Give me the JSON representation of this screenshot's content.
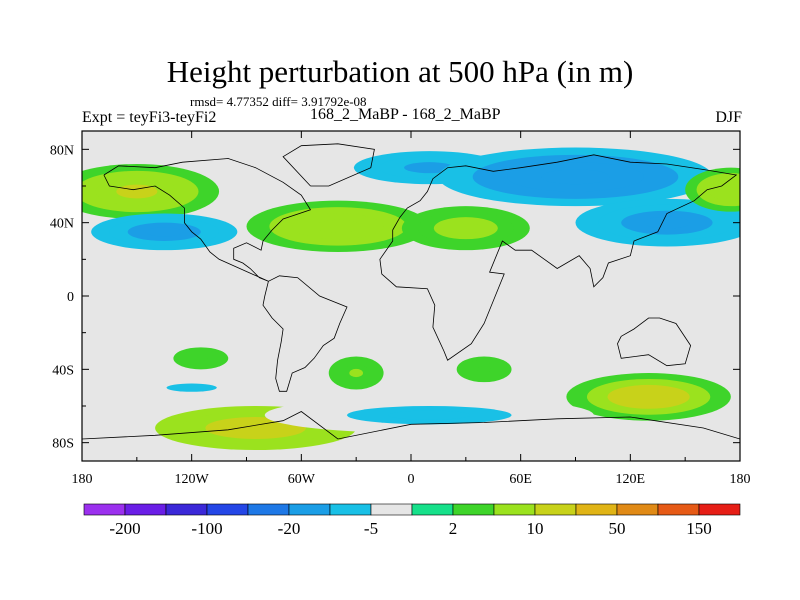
{
  "title": "Height perturbation at 500 hPa (in m)",
  "stats": "rmsd= 4.77352 diff= 3.91792e-08",
  "expt": "Expt = teyFi3-teyFi2",
  "subtitle": "168_2_MaBP - 168_2_MaBP",
  "season": "DJF",
  "chart_data": {
    "type": "heatmap",
    "title": "Height perturbation at 500 hPa (in m)",
    "xlabel": "",
    "ylabel": "",
    "xlim": [
      -180,
      180
    ],
    "ylim": [
      -90,
      90
    ],
    "x_ticks": [
      -180,
      -120,
      -60,
      0,
      60,
      120,
      180
    ],
    "x_tick_labels": [
      "180",
      "120W",
      "60W",
      "0",
      "60E",
      "120E",
      "180"
    ],
    "y_ticks": [
      80,
      40,
      0,
      -40,
      -80
    ],
    "y_tick_labels": [
      "80N",
      "40N",
      "0",
      "40S",
      "80S"
    ],
    "colorbar": {
      "labels": [
        "-200",
        "-100",
        "-20",
        "-5",
        "2",
        "10",
        "50",
        "150"
      ],
      "colors": [
        "#9b30ee",
        "#6a1ee6",
        "#3b28d8",
        "#2446e6",
        "#1e78e6",
        "#1b9ee6",
        "#19c0e6",
        "#e6e6e6",
        "#16e08a",
        "#3ed42a",
        "#9be21e",
        "#c8d21a",
        "#e0b416",
        "#e08a16",
        "#e65a16",
        "#e61e16"
      ]
    },
    "field_blobs": [
      {
        "lon": -150,
        "lat": 57,
        "rlon": 45,
        "rlat": 15,
        "value": 12
      },
      {
        "lon": -135,
        "lat": 35,
        "rlon": 40,
        "rlat": 10,
        "value": -15
      },
      {
        "lon": -40,
        "lat": 38,
        "rlon": 50,
        "rlat": 14,
        "value": 10
      },
      {
        "lon": 30,
        "lat": 37,
        "rlon": 35,
        "rlat": 12,
        "value": 8
      },
      {
        "lon": 10,
        "lat": 70,
        "rlon": 55,
        "rlat": 12,
        "value": -12
      },
      {
        "lon": 90,
        "lat": 65,
        "rlon": 75,
        "rlat": 16,
        "value": -18
      },
      {
        "lon": 140,
        "lat": 40,
        "rlon": 50,
        "rlat": 13,
        "value": -16
      },
      {
        "lon": 175,
        "lat": 58,
        "rlon": 25,
        "rlat": 12,
        "value": 9
      },
      {
        "lon": -85,
        "lat": -72,
        "rlon": 55,
        "rlat": 12,
        "value": 15
      },
      {
        "lon": -120,
        "lat": -50,
        "rlon": 55,
        "rlat": 9,
        "value": -5
      },
      {
        "lon": 130,
        "lat": -55,
        "rlon": 45,
        "rlat": 13,
        "value": 14
      },
      {
        "lon": 10,
        "lat": -65,
        "rlon": 90,
        "rlat": 10,
        "value": -8
      },
      {
        "lon": -30,
        "lat": -42,
        "rlon": 15,
        "rlat": 9,
        "value": 6
      },
      {
        "lon": 40,
        "lat": -40,
        "rlon": 15,
        "rlat": 7,
        "value": 5
      },
      {
        "lon": -115,
        "lat": -34,
        "rlon": 15,
        "rlat": 6,
        "value": 3
      }
    ]
  }
}
